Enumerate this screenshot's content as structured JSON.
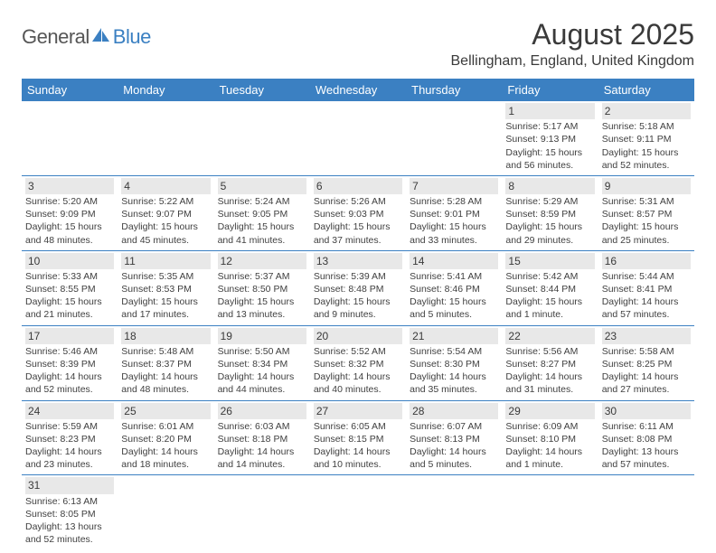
{
  "logo": {
    "part1": "General",
    "part2": "Blue"
  },
  "title": "August 2025",
  "location": "Bellingham, England, United Kingdom",
  "colors": {
    "header_bg": "#3b80c2",
    "header_text": "#ffffff",
    "daynum_bg": "#e8e8e8",
    "text": "#404040",
    "border": "#3b80c2"
  },
  "fonts": {
    "title_size": 32,
    "location_size": 16,
    "head_size": 13,
    "body_size": 10.5
  },
  "day_headers": [
    "Sunday",
    "Monday",
    "Tuesday",
    "Wednesday",
    "Thursday",
    "Friday",
    "Saturday"
  ],
  "weeks": [
    [
      {
        "n": "",
        "sr": "",
        "ss": "",
        "dl": ""
      },
      {
        "n": "",
        "sr": "",
        "ss": "",
        "dl": ""
      },
      {
        "n": "",
        "sr": "",
        "ss": "",
        "dl": ""
      },
      {
        "n": "",
        "sr": "",
        "ss": "",
        "dl": ""
      },
      {
        "n": "",
        "sr": "",
        "ss": "",
        "dl": ""
      },
      {
        "n": "1",
        "sr": "Sunrise: 5:17 AM",
        "ss": "Sunset: 9:13 PM",
        "dl": "Daylight: 15 hours and 56 minutes."
      },
      {
        "n": "2",
        "sr": "Sunrise: 5:18 AM",
        "ss": "Sunset: 9:11 PM",
        "dl": "Daylight: 15 hours and 52 minutes."
      }
    ],
    [
      {
        "n": "3",
        "sr": "Sunrise: 5:20 AM",
        "ss": "Sunset: 9:09 PM",
        "dl": "Daylight: 15 hours and 48 minutes."
      },
      {
        "n": "4",
        "sr": "Sunrise: 5:22 AM",
        "ss": "Sunset: 9:07 PM",
        "dl": "Daylight: 15 hours and 45 minutes."
      },
      {
        "n": "5",
        "sr": "Sunrise: 5:24 AM",
        "ss": "Sunset: 9:05 PM",
        "dl": "Daylight: 15 hours and 41 minutes."
      },
      {
        "n": "6",
        "sr": "Sunrise: 5:26 AM",
        "ss": "Sunset: 9:03 PM",
        "dl": "Daylight: 15 hours and 37 minutes."
      },
      {
        "n": "7",
        "sr": "Sunrise: 5:28 AM",
        "ss": "Sunset: 9:01 PM",
        "dl": "Daylight: 15 hours and 33 minutes."
      },
      {
        "n": "8",
        "sr": "Sunrise: 5:29 AM",
        "ss": "Sunset: 8:59 PM",
        "dl": "Daylight: 15 hours and 29 minutes."
      },
      {
        "n": "9",
        "sr": "Sunrise: 5:31 AM",
        "ss": "Sunset: 8:57 PM",
        "dl": "Daylight: 15 hours and 25 minutes."
      }
    ],
    [
      {
        "n": "10",
        "sr": "Sunrise: 5:33 AM",
        "ss": "Sunset: 8:55 PM",
        "dl": "Daylight: 15 hours and 21 minutes."
      },
      {
        "n": "11",
        "sr": "Sunrise: 5:35 AM",
        "ss": "Sunset: 8:53 PM",
        "dl": "Daylight: 15 hours and 17 minutes."
      },
      {
        "n": "12",
        "sr": "Sunrise: 5:37 AM",
        "ss": "Sunset: 8:50 PM",
        "dl": "Daylight: 15 hours and 13 minutes."
      },
      {
        "n": "13",
        "sr": "Sunrise: 5:39 AM",
        "ss": "Sunset: 8:48 PM",
        "dl": "Daylight: 15 hours and 9 minutes."
      },
      {
        "n": "14",
        "sr": "Sunrise: 5:41 AM",
        "ss": "Sunset: 8:46 PM",
        "dl": "Daylight: 15 hours and 5 minutes."
      },
      {
        "n": "15",
        "sr": "Sunrise: 5:42 AM",
        "ss": "Sunset: 8:44 PM",
        "dl": "Daylight: 15 hours and 1 minute."
      },
      {
        "n": "16",
        "sr": "Sunrise: 5:44 AM",
        "ss": "Sunset: 8:41 PM",
        "dl": "Daylight: 14 hours and 57 minutes."
      }
    ],
    [
      {
        "n": "17",
        "sr": "Sunrise: 5:46 AM",
        "ss": "Sunset: 8:39 PM",
        "dl": "Daylight: 14 hours and 52 minutes."
      },
      {
        "n": "18",
        "sr": "Sunrise: 5:48 AM",
        "ss": "Sunset: 8:37 PM",
        "dl": "Daylight: 14 hours and 48 minutes."
      },
      {
        "n": "19",
        "sr": "Sunrise: 5:50 AM",
        "ss": "Sunset: 8:34 PM",
        "dl": "Daylight: 14 hours and 44 minutes."
      },
      {
        "n": "20",
        "sr": "Sunrise: 5:52 AM",
        "ss": "Sunset: 8:32 PM",
        "dl": "Daylight: 14 hours and 40 minutes."
      },
      {
        "n": "21",
        "sr": "Sunrise: 5:54 AM",
        "ss": "Sunset: 8:30 PM",
        "dl": "Daylight: 14 hours and 35 minutes."
      },
      {
        "n": "22",
        "sr": "Sunrise: 5:56 AM",
        "ss": "Sunset: 8:27 PM",
        "dl": "Daylight: 14 hours and 31 minutes."
      },
      {
        "n": "23",
        "sr": "Sunrise: 5:58 AM",
        "ss": "Sunset: 8:25 PM",
        "dl": "Daylight: 14 hours and 27 minutes."
      }
    ],
    [
      {
        "n": "24",
        "sr": "Sunrise: 5:59 AM",
        "ss": "Sunset: 8:23 PM",
        "dl": "Daylight: 14 hours and 23 minutes."
      },
      {
        "n": "25",
        "sr": "Sunrise: 6:01 AM",
        "ss": "Sunset: 8:20 PM",
        "dl": "Daylight: 14 hours and 18 minutes."
      },
      {
        "n": "26",
        "sr": "Sunrise: 6:03 AM",
        "ss": "Sunset: 8:18 PM",
        "dl": "Daylight: 14 hours and 14 minutes."
      },
      {
        "n": "27",
        "sr": "Sunrise: 6:05 AM",
        "ss": "Sunset: 8:15 PM",
        "dl": "Daylight: 14 hours and 10 minutes."
      },
      {
        "n": "28",
        "sr": "Sunrise: 6:07 AM",
        "ss": "Sunset: 8:13 PM",
        "dl": "Daylight: 14 hours and 5 minutes."
      },
      {
        "n": "29",
        "sr": "Sunrise: 6:09 AM",
        "ss": "Sunset: 8:10 PM",
        "dl": "Daylight: 14 hours and 1 minute."
      },
      {
        "n": "30",
        "sr": "Sunrise: 6:11 AM",
        "ss": "Sunset: 8:08 PM",
        "dl": "Daylight: 13 hours and 57 minutes."
      }
    ],
    [
      {
        "n": "31",
        "sr": "Sunrise: 6:13 AM",
        "ss": "Sunset: 8:05 PM",
        "dl": "Daylight: 13 hours and 52 minutes."
      },
      {
        "n": "",
        "sr": "",
        "ss": "",
        "dl": ""
      },
      {
        "n": "",
        "sr": "",
        "ss": "",
        "dl": ""
      },
      {
        "n": "",
        "sr": "",
        "ss": "",
        "dl": ""
      },
      {
        "n": "",
        "sr": "",
        "ss": "",
        "dl": ""
      },
      {
        "n": "",
        "sr": "",
        "ss": "",
        "dl": ""
      },
      {
        "n": "",
        "sr": "",
        "ss": "",
        "dl": ""
      }
    ]
  ]
}
